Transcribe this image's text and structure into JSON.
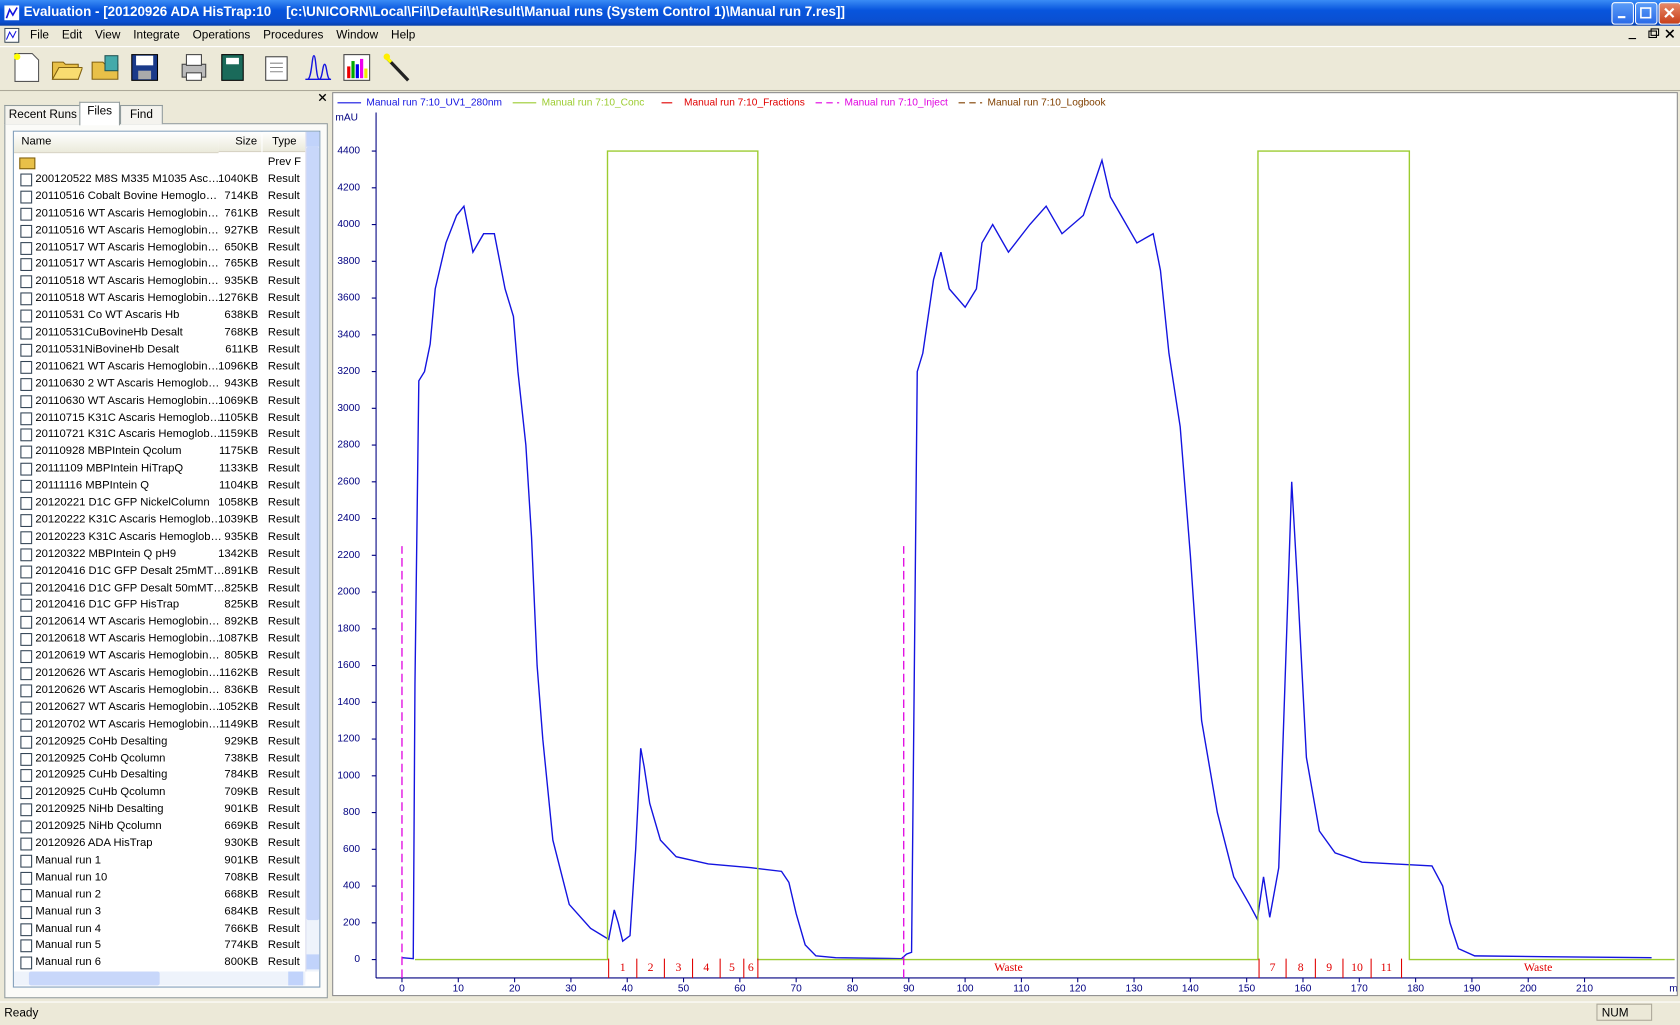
{
  "window": {
    "title": "Evaluation - [20120926 ADA HisTrap:10    [c:\\UNICORN\\Local\\Fil\\Default\\Result\\Manual runs (System Control 1)\\Manual run 7.res]]",
    "menu": [
      "File",
      "Edit",
      "View",
      "Integrate",
      "Operations",
      "Procedures",
      "Window",
      "Help"
    ]
  },
  "left_panel": {
    "tabs": [
      "Recent Runs",
      "Files",
      "Find"
    ],
    "columns": [
      "Name",
      "Size",
      "Type"
    ],
    "rows": [
      {
        "type": "Prev F"
      },
      {
        "name": "200120522 M8S M335 M1035 Asc…",
        "size": "1040KB",
        "type": "Result"
      },
      {
        "name": "20110516 Cobalt Bovine Hemoglo…",
        "size": "714KB",
        "type": "Result"
      },
      {
        "name": "20110516 WT Ascaris Hemoglobin…",
        "size": "761KB",
        "type": "Result"
      },
      {
        "name": "20110516 WT Ascaris Hemoglobin…",
        "size": "927KB",
        "type": "Result"
      },
      {
        "name": "20110517 WT Ascaris Hemoglobin…",
        "size": "650KB",
        "type": "Result"
      },
      {
        "name": "20110517 WT Ascaris Hemoglobin…",
        "size": "765KB",
        "type": "Result"
      },
      {
        "name": "20110518 WT Ascaris Hemoglobin…",
        "size": "935KB",
        "type": "Result"
      },
      {
        "name": "20110518 WT Ascaris Hemoglobin…",
        "size": "1276KB",
        "type": "Result"
      },
      {
        "name": "20110531 Co WT Ascaris Hb",
        "size": "638KB",
        "type": "Result"
      },
      {
        "name": "20110531CuBovineHb Desalt",
        "size": "768KB",
        "type": "Result"
      },
      {
        "name": "20110531NiBovineHb Desalt",
        "size": "611KB",
        "type": "Result"
      },
      {
        "name": "20110621 WT Ascaris Hemoglobin…",
        "size": "1096KB",
        "type": "Result"
      },
      {
        "name": "20110630 2 WT Ascaris Hemoglob…",
        "size": "943KB",
        "type": "Result"
      },
      {
        "name": "20110630 WT Ascaris Hemoglobin…",
        "size": "1069KB",
        "type": "Result"
      },
      {
        "name": "20110715 K31C Ascaris Hemoglob…",
        "size": "1105KB",
        "type": "Result"
      },
      {
        "name": "20110721 K31C Ascaris Hemoglob…",
        "size": "1159KB",
        "type": "Result"
      },
      {
        "name": "20110928 MBPIntein Qcolum",
        "size": "1175KB",
        "type": "Result"
      },
      {
        "name": "20111109 MBPIntein HiTrapQ",
        "size": "1133KB",
        "type": "Result"
      },
      {
        "name": "20111116 MBPIntein Q",
        "size": "1104KB",
        "type": "Result"
      },
      {
        "name": "20120221 D1C GFP NickelColumn",
        "size": "1058KB",
        "type": "Result"
      },
      {
        "name": "20120222 K31C Ascaris Hemoglob…",
        "size": "1039KB",
        "type": "Result"
      },
      {
        "name": "20120223 K31C Ascaris Hemoglob…",
        "size": "935KB",
        "type": "Result"
      },
      {
        "name": "20120322 MBPIntein Q pH9",
        "size": "1342KB",
        "type": "Result"
      },
      {
        "name": "20120416 D1C GFP Desalt 25mMT…",
        "size": "891KB",
        "type": "Result"
      },
      {
        "name": "20120416 D1C GFP Desalt 50mMT…",
        "size": "825KB",
        "type": "Result"
      },
      {
        "name": "20120416 D1C GFP HisTrap",
        "size": "825KB",
        "type": "Result"
      },
      {
        "name": "20120614 WT Ascaris Hemoglobin…",
        "size": "892KB",
        "type": "Result"
      },
      {
        "name": "20120618 WT Ascaris Hemoglobin…",
        "size": "1087KB",
        "type": "Result"
      },
      {
        "name": "20120619 WT Ascaris Hemoglobin…",
        "size": "805KB",
        "type": "Result"
      },
      {
        "name": "20120626 WT Ascaris Hemoglobin…",
        "size": "1162KB",
        "type": "Result"
      },
      {
        "name": "20120626 WT Ascaris Hemoglobin…",
        "size": "836KB",
        "type": "Result"
      },
      {
        "name": "20120627 WT Ascaris Hemoglobin…",
        "size": "1052KB",
        "type": "Result"
      },
      {
        "name": "20120702 WT Ascaris Hemoglobin…",
        "size": "1149KB",
        "type": "Result"
      },
      {
        "name": "20120925 CoHb Desalting",
        "size": "929KB",
        "type": "Result"
      },
      {
        "name": "20120925 CoHb Qcolumn",
        "size": "738KB",
        "type": "Result"
      },
      {
        "name": "20120925 CuHb Desalting",
        "size": "784KB",
        "type": "Result"
      },
      {
        "name": "20120925 CuHb Qcolumn",
        "size": "709KB",
        "type": "Result"
      },
      {
        "name": "20120925 NiHb Desalting",
        "size": "901KB",
        "type": "Result"
      },
      {
        "name": "20120925 NiHb Qcolumn",
        "size": "669KB",
        "type": "Result"
      },
      {
        "name": "20120926 ADA HisTrap",
        "size": "930KB",
        "type": "Result"
      },
      {
        "name": "Manual run 1",
        "size": "901KB",
        "type": "Result"
      },
      {
        "name": "Manual run 10",
        "size": "708KB",
        "type": "Result"
      },
      {
        "name": "Manual run 2",
        "size": "668KB",
        "type": "Result"
      },
      {
        "name": "Manual run 3",
        "size": "684KB",
        "type": "Result"
      },
      {
        "name": "Manual run 4",
        "size": "766KB",
        "type": "Result"
      },
      {
        "name": "Manual run 5",
        "size": "774KB",
        "type": "Result"
      },
      {
        "name": "Manual run 6",
        "size": "800KB",
        "type": "Result"
      }
    ]
  },
  "chart_data": {
    "type": "line",
    "x_label": "ml",
    "y_label": "mAU",
    "xlim": [
      -4.6,
      226
    ],
    "ylim": [
      -100,
      4610
    ],
    "xticks": [
      0,
      10,
      20,
      30,
      40,
      50,
      60,
      70,
      80,
      90,
      100,
      110,
      120,
      130,
      140,
      150,
      160,
      170,
      180,
      190,
      200,
      210
    ],
    "yticks": [
      0,
      200,
      400,
      600,
      800,
      1000,
      1200,
      1400,
      1600,
      1800,
      2000,
      2200,
      2400,
      2600,
      2800,
      3000,
      3200,
      3400,
      3600,
      3800,
      4000,
      4200,
      4400
    ],
    "grid": false,
    "series": [
      {
        "name": "Manual run 7:10_UV1_280nm",
        "color": "#1414e0",
        "marks": "line",
        "x": [
          0,
          2,
          2.3,
          3,
          4,
          5,
          5.9,
          7.8,
          9.7,
          11,
          12.6,
          14.5,
          16.4,
          18.3,
          19.8,
          20.6,
          22,
          23,
          24,
          25,
          26.8,
          29.7,
          33.5,
          36.7,
          37.7,
          38.4,
          39.2,
          40.5,
          41.5,
          42.4,
          43,
          44,
          45.9,
          48.7,
          54.4,
          62,
          67.4,
          68.7,
          70,
          71.6,
          73.5,
          77,
          88.7,
          89.6,
          90.5,
          91.5,
          92.5,
          94.4,
          95.7,
          97.2,
          100,
          102,
          103,
          104.9,
          107.7,
          111.5,
          114.4,
          117.2,
          121,
          124.3,
          125.8,
          127.7,
          130.5,
          133.4,
          134.7,
          136.2,
          138.2,
          140,
          142,
          144.8,
          147.7,
          150.5,
          151.9,
          153,
          154.1,
          155.7,
          156.8,
          158,
          159.1,
          160.6,
          162.9,
          165.7,
          170.5,
          176.2,
          182.9,
          184.8,
          186.1,
          187.6,
          190.5,
          204.8,
          221.9
        ],
        "values": [
          10,
          5,
          1500,
          3150,
          3200,
          3350,
          3650,
          3900,
          4050,
          4100,
          3850,
          3950,
          3950,
          3650,
          3500,
          3200,
          2800,
          2300,
          1600,
          1200,
          650,
          300,
          170,
          110,
          270,
          200,
          100,
          130,
          600,
          1150,
          1050,
          850,
          650,
          560,
          520,
          500,
          480,
          420,
          250,
          80,
          20,
          10,
          5,
          30,
          40,
          3200,
          3300,
          3700,
          3850,
          3650,
          3550,
          3650,
          3900,
          4000,
          3850,
          4000,
          4100,
          3950,
          4050,
          4350,
          4150,
          4050,
          3900,
          3950,
          3750,
          3300,
          2900,
          2200,
          1300,
          800,
          450,
          300,
          220,
          450,
          230,
          500,
          1500,
          2600,
          2000,
          1100,
          700,
          580,
          530,
          520,
          510,
          400,
          200,
          60,
          20,
          15,
          10
        ]
      },
      {
        "name": "Manual run 7:10_Conc",
        "color": "#9ccc30",
        "marks": "line",
        "x": [
          2.3,
          36.5,
          36.5,
          63.2,
          63.2,
          152,
          152,
          178.9,
          178.9,
          226
        ],
        "values": [
          0,
          0,
          4400,
          4400,
          0,
          0,
          4400,
          4400,
          0,
          0
        ]
      },
      {
        "name": "Manual run 7:10_Fractions",
        "color": "#e00000",
        "marks": "fractions",
        "x": [
          36.7,
          41.7,
          46.6,
          51.6,
          56.5,
          60.7,
          63.2,
          152.2,
          157,
          162.2,
          167.1,
          172.1,
          177.5
        ],
        "labels": [
          "1",
          "2",
          "3",
          "4",
          "5",
          "6",
          "Waste",
          "7",
          "8",
          "9",
          "10",
          "11",
          "Waste"
        ]
      },
      {
        "name": "Manual run 7:10_Inject",
        "color": "#e000e0",
        "marks": "event",
        "x": [
          0,
          89.1
        ],
        "values": [
          2250,
          2250
        ]
      },
      {
        "name": "Manual run 7:10_Logbook",
        "color": "#804000",
        "marks": "event"
      }
    ]
  },
  "status_bar": {
    "left": "Ready",
    "right": "NUM"
  }
}
